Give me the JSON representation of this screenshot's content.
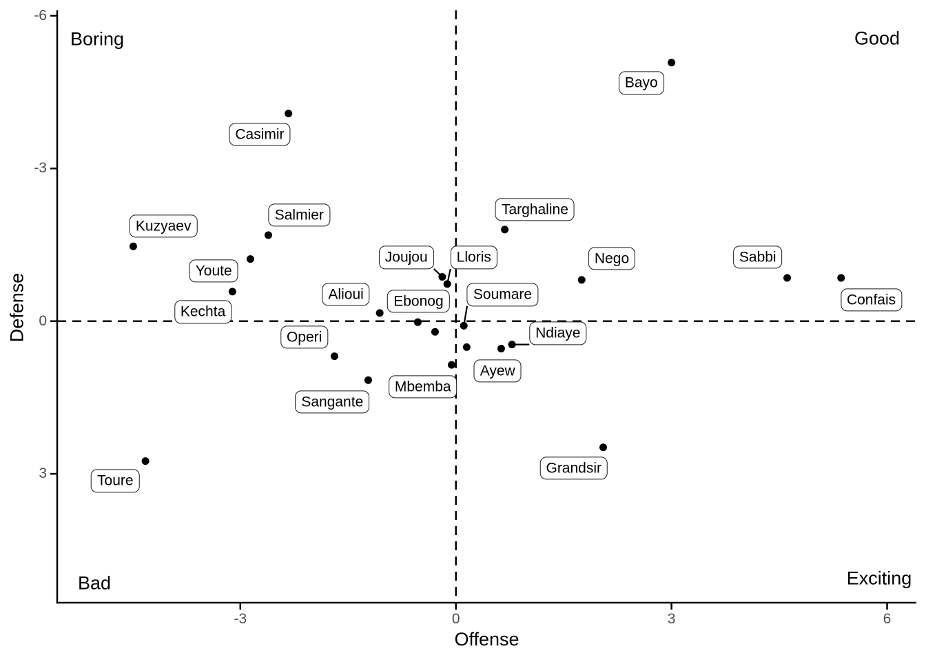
{
  "chart_data": {
    "type": "scatter",
    "xlabel": "Offense",
    "ylabel": "Defense",
    "x_ticks": [
      -3,
      0,
      3,
      6
    ],
    "y_ticks": [
      -6,
      -3,
      0,
      3
    ],
    "x_range": [
      -5.55,
      6.4
    ],
    "y_range_top_to_bottom": [
      -6.1,
      5.53
    ],
    "y_axis_reversed": true,
    "grid": false,
    "legend": "none",
    "reference_lines": [
      {
        "axis": "x",
        "value": 0,
        "style": "dashed"
      },
      {
        "axis": "y",
        "value": 0,
        "style": "dashed"
      }
    ],
    "quadrant_labels": {
      "top_left": "Boring",
      "top_right": "Good",
      "bottom_left": "Bad",
      "bottom_right": "Exciting"
    },
    "points": [
      {
        "name": "Bayo",
        "offense": 3.0,
        "defense": -5.08,
        "label_x": 2.58,
        "label_y": -4.68,
        "leader": false
      },
      {
        "name": "Casimir",
        "offense": -2.33,
        "defense": -4.08,
        "label_x": -2.73,
        "label_y": -3.67,
        "leader": false
      },
      {
        "name": "Kuzyaev",
        "offense": -4.49,
        "defense": -1.47,
        "label_x": -4.07,
        "label_y": -1.87,
        "leader": false
      },
      {
        "name": "Salmier",
        "offense": -2.61,
        "defense": -1.69,
        "label_x": -2.18,
        "label_y": -2.08,
        "leader": false
      },
      {
        "name": "Youte",
        "offense": -2.86,
        "defense": -1.22,
        "label_x": -3.37,
        "label_y": -0.99,
        "leader": false
      },
      {
        "name": "Kechta",
        "offense": -3.11,
        "defense": -0.58,
        "label_x": -3.52,
        "label_y": -0.18,
        "leader": false
      },
      {
        "name": "Toure",
        "offense": -4.32,
        "defense": 2.75,
        "label_x": -4.74,
        "label_y": 3.14,
        "leader": false
      },
      {
        "name": "Alioui",
        "offense": -1.06,
        "defense": -0.16,
        "label_x": -1.53,
        "label_y": -0.53,
        "leader": false
      },
      {
        "name": "Ebonog",
        "offense": -0.53,
        "defense": 0.02,
        "label_x": -0.52,
        "label_y": -0.39,
        "leader": false
      },
      {
        "name": "Joujou",
        "offense": -0.19,
        "defense": -0.87,
        "label_x": -0.69,
        "label_y": -1.25,
        "leader": true
      },
      {
        "name": "Lloris",
        "offense": -0.12,
        "defense": -0.73,
        "label_x": 0.25,
        "label_y": -1.25,
        "leader": true
      },
      {
        "name": "Targhaline",
        "offense": 0.68,
        "defense": -1.8,
        "label_x": 1.1,
        "label_y": -2.19,
        "leader": false
      },
      {
        "name": "Soumare",
        "offense": 0.11,
        "defense": 0.09,
        "label_x": 0.65,
        "label_y": -0.52,
        "leader": true
      },
      {
        "name": "Nego",
        "offense": 1.75,
        "defense": -0.81,
        "label_x": 2.17,
        "label_y": -1.23,
        "leader": false
      },
      {
        "name": "Sabbi",
        "offense": 4.61,
        "defense": -0.85,
        "label_x": 4.2,
        "label_y": -1.26,
        "leader": false
      },
      {
        "name": "Confais",
        "offense": 5.36,
        "defense": -0.85,
        "label_x": 5.78,
        "label_y": -0.42,
        "leader": false
      },
      {
        "name": "Ndiaye",
        "offense": 0.78,
        "defense": 0.46,
        "label_x": 1.42,
        "label_y": 0.24,
        "leader": true
      },
      {
        "name": "Ayew",
        "offense": 0.63,
        "defense": 0.54,
        "label_x": 0.58,
        "label_y": 0.98,
        "leader": false
      },
      {
        "name": "Mbemba",
        "offense": -0.06,
        "defense": 0.86,
        "label_x": -0.46,
        "label_y": 1.29,
        "leader": false
      },
      {
        "name": "Operi",
        "offense": -1.69,
        "defense": 0.69,
        "label_x": -2.11,
        "label_y": 0.31,
        "leader": false
      },
      {
        "name": "Sangante",
        "offense": -1.22,
        "defense": 1.16,
        "label_x": -1.72,
        "label_y": 1.59,
        "leader": false
      },
      {
        "name": "Grandsir",
        "offense": 2.05,
        "defense": 2.48,
        "label_x": 1.64,
        "label_y": 2.89,
        "leader": false
      },
      {
        "name": "",
        "offense": -0.29,
        "defense": 0.21,
        "label_x": null,
        "label_y": null,
        "leader": false
      },
      {
        "name": "",
        "offense": 0.15,
        "defense": 0.51,
        "label_x": null,
        "label_y": null,
        "leader": false
      }
    ]
  },
  "colors": {
    "point": "#000000",
    "label_border": "#1a1a1a",
    "label_background": "#ffffff",
    "axis_line": "#000000",
    "tick_text": "#4d4d4d",
    "reference_line": "#000000",
    "text": "#000000",
    "background": "#ffffff"
  }
}
